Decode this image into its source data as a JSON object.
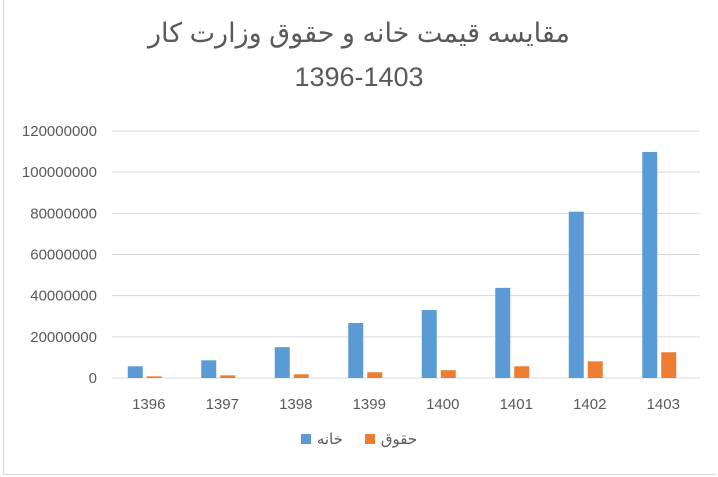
{
  "chart_data": {
    "type": "bar",
    "title": "مقایسه قیمت خانه و حقوق وزارت کار",
    "subtitle": "1396-1403",
    "categories": [
      "1396",
      "1397",
      "1398",
      "1399",
      "1400",
      "1401",
      "1402",
      "1403"
    ],
    "series": [
      {
        "name": "خانه",
        "color": "#5b9bd5",
        "values": [
          5700000,
          8600000,
          15000000,
          26700000,
          33000000,
          43800000,
          80800000,
          109800000
        ]
      },
      {
        "name": "حقوق",
        "color": "#ed7d31",
        "values": [
          800000,
          1300000,
          1800000,
          2800000,
          3800000,
          5700000,
          8100000,
          12500000
        ]
      }
    ],
    "xlabel": "",
    "ylabel": "",
    "ylim": [
      0,
      120000000
    ],
    "yticks": [
      "0",
      "20000000",
      "40000000",
      "60000000",
      "80000000",
      "100000000",
      "120000000"
    ],
    "grid": true,
    "legend": "bottom"
  }
}
